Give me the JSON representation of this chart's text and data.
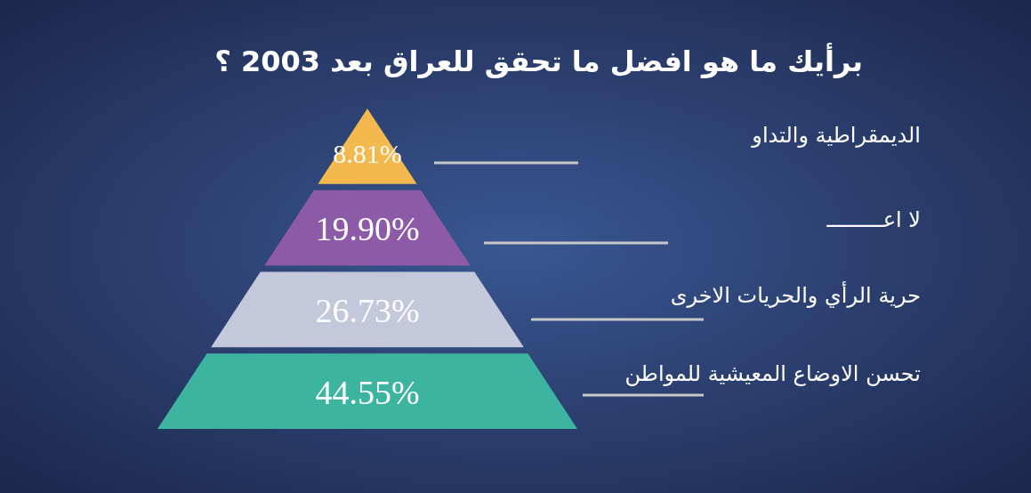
{
  "chart_data": {
    "type": "other",
    "title": "برأيك ما هو افضل ما تحقق للعراق بعد 2003 ؟",
    "categories": [
      "الديمقراطية والتداو",
      "لا اعـــــــــ",
      "حرية الرأي والحريات الاخرى",
      "تحسن الاوضاع المعيشية للمواطن"
    ],
    "values": [
      8.81,
      19.9,
      26.73,
      44.55
    ],
    "value_labels": [
      "8.81%",
      "19.90%",
      "26.73%",
      "44.55%"
    ],
    "colors": [
      "#f3b84e",
      "#8c5aa6",
      "#c3c8db",
      "#3db4a0"
    ]
  }
}
